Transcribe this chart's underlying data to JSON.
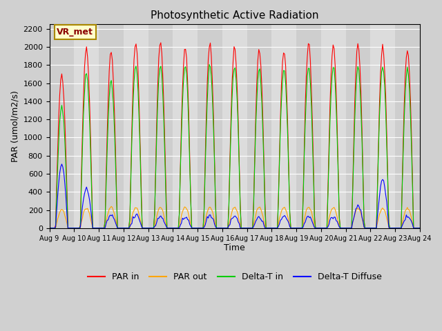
{
  "title": "Photosynthetic Active Radiation",
  "ylabel": "PAR (umol/m2/s)",
  "xlabel": "Time",
  "annotation": "VR_met",
  "ylim": [
    0,
    2250
  ],
  "yticks": [
    0,
    200,
    400,
    600,
    800,
    1000,
    1200,
    1400,
    1600,
    1800,
    2000,
    2200
  ],
  "date_start": 9,
  "n_days": 15,
  "colors": {
    "PAR_in": "#ff0000",
    "PAR_out": "#ffa500",
    "Delta_T_in": "#00cc00",
    "Delta_T_Diffuse": "#0000ff"
  },
  "legend_labels": [
    "PAR in",
    "PAR out",
    "Delta-T in",
    "Delta-T Diffuse"
  ],
  "annotation_bg": "#ffffcc",
  "annotation_border": "#aa8800",
  "par_in_peaks": [
    1700,
    2000,
    1950,
    2050,
    2050,
    2000,
    2030,
    1980,
    1970,
    1960,
    2030,
    2020,
    2030,
    2000,
    1980
  ],
  "par_out_peaks": [
    200,
    220,
    230,
    230,
    230,
    230,
    230,
    230,
    230,
    230,
    230,
    230,
    220,
    220,
    220
  ],
  "delta_t_peaks": [
    1350,
    1700,
    1630,
    1800,
    1800,
    1800,
    1800,
    1780,
    1760,
    1760,
    1780,
    1780,
    1780,
    1780,
    1760
  ],
  "delta_diffuse_peaks": [
    700,
    430,
    140,
    140,
    130,
    120,
    130,
    130,
    120,
    130,
    120,
    130,
    240,
    530,
    130
  ]
}
